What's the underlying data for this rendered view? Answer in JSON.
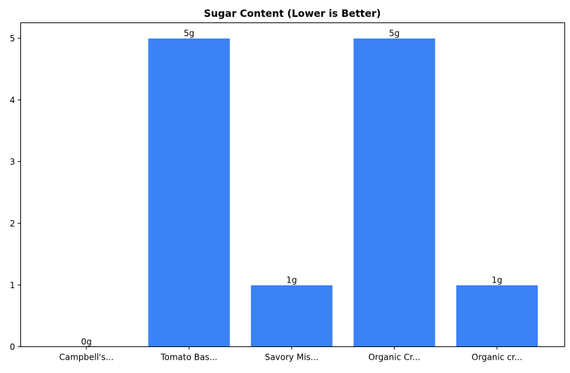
{
  "chart_data": {
    "type": "bar",
    "title": "Sugar Content (Lower is Better)",
    "xlabel": "",
    "ylabel": "",
    "categories": [
      "Campbell's...",
      "Tomato Bas...",
      "Savory Mis...",
      "Organic Cr...",
      "Organic cr..."
    ],
    "values": [
      0,
      5,
      1,
      5,
      1
    ],
    "data_labels": [
      "0g",
      "5g",
      "1g",
      "5g",
      "1g"
    ],
    "ylim": [
      0,
      5.25
    ],
    "yticks": [
      0,
      1,
      2,
      3,
      4,
      5
    ],
    "grid": false,
    "bar_color": "#3b82f6"
  }
}
